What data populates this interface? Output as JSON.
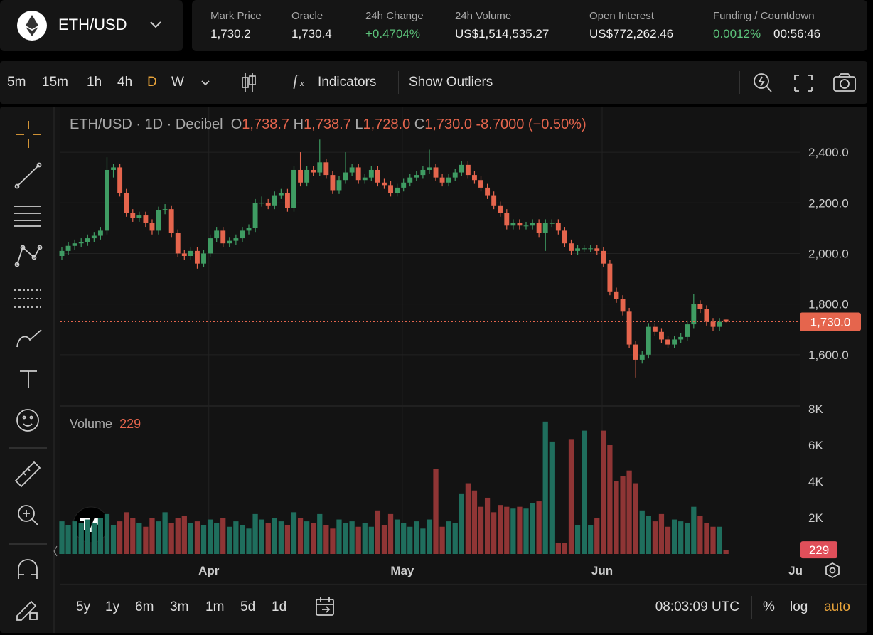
{
  "header": {
    "symbol": "ETH/USD",
    "stats": [
      {
        "label": "Mark Price",
        "value": "1,730.2"
      },
      {
        "label": "Oracle",
        "value": "1,730.4"
      },
      {
        "label": "24h Change",
        "value": "+0.4704%"
      },
      {
        "label": "24h Volume",
        "value": "US$1,514,535.27"
      },
      {
        "label": "Open Interest",
        "value": "US$772,262.46"
      },
      {
        "label": "Funding / Countdown",
        "value": "0.0012%",
        "countdown": "00:56:46"
      }
    ]
  },
  "toolbar": {
    "intervals": [
      "5m",
      "15m",
      "1h",
      "4h",
      "D",
      "W"
    ],
    "indicators": "Indicators",
    "show_outliers": "Show Outliers"
  },
  "footer": {
    "ranges": [
      "5y",
      "1y",
      "6m",
      "3m",
      "1m",
      "5d",
      "1d"
    ],
    "time": "08:03:09 UTC",
    "percent": "%",
    "log": "log",
    "auto": "auto"
  },
  "chart_data": {
    "type": "candlestick",
    "legend": {
      "title": "ETH/USD · 1D · Decibel",
      "items": [
        {
          "key": "O",
          "value": "1,738.7"
        },
        {
          "key": "H",
          "value": "1,738.7"
        },
        {
          "key": "L",
          "value": "1,728.0"
        },
        {
          "key": "C",
          "value": "1,730.0"
        }
      ],
      "change": "-8.7000 (−0.50%)"
    },
    "volume_label": "Volume",
    "up_color": "#3f9c63",
    "down_color": "#e5654d",
    "volume_up_color": "#1f6e5d",
    "volume_down_color": "#8f3535",
    "grid": true,
    "xlim": [
      -0.22,
      114.45
    ],
    "xticks": [
      {
        "value": 22.8,
        "label": "Apr"
      },
      {
        "value": 52.8,
        "label": "May"
      },
      {
        "value": 83.8,
        "label": "Jun"
      },
      {
        "value": 113.8,
        "label": "Ju"
      }
    ],
    "ylim": [
      1400,
      2580
    ],
    "yticks": [
      {
        "value": 1600,
        "label": "1,600.0"
      },
      {
        "value": 1800,
        "label": "1,800.0"
      },
      {
        "value": 2000,
        "label": "2,000.0"
      },
      {
        "value": 2200,
        "label": "2,200.0"
      },
      {
        "value": 2400,
        "label": "2,400.0"
      }
    ],
    "volume_ylim": [
      0,
      8000
    ],
    "volume_yticks": [
      {
        "value": 2000,
        "label": "2K"
      },
      {
        "value": 4000,
        "label": "4K"
      },
      {
        "value": 6000,
        "label": "6K"
      },
      {
        "value": 8000,
        "label": "8K"
      }
    ],
    "last_price": 1730,
    "last_price_label": "1,730.0",
    "ohlc": [
      [
        1990,
        2025,
        1975,
        2010
      ],
      [
        2010,
        2045,
        1995,
        2030
      ],
      [
        2030,
        2055,
        2015,
        2040
      ],
      [
        2040,
        2060,
        2025,
        2045
      ],
      [
        2045,
        2075,
        2030,
        2060
      ],
      [
        2060,
        2085,
        2045,
        2070
      ],
      [
        2070,
        2105,
        2055,
        2090
      ],
      [
        2090,
        2380,
        2075,
        2330
      ],
      [
        2330,
        2355,
        2300,
        2340
      ],
      [
        2340,
        2355,
        2225,
        2240
      ],
      [
        2240,
        2255,
        2145,
        2160
      ],
      [
        2160,
        2175,
        2125,
        2140
      ],
      [
        2140,
        2165,
        2125,
        2150
      ],
      [
        2150,
        2165,
        2105,
        2120
      ],
      [
        2120,
        2135,
        2075,
        2090
      ],
      [
        2090,
        2185,
        2075,
        2170
      ],
      [
        2170,
        2195,
        2155,
        2175
      ],
      [
        2175,
        2190,
        2065,
        2080
      ],
      [
        2080,
        2095,
        1985,
        2000
      ],
      [
        2000,
        2015,
        1975,
        1990
      ],
      [
        1990,
        2025,
        1975,
        2010
      ],
      [
        2010,
        2025,
        1940,
        1960
      ],
      [
        1960,
        2015,
        1945,
        2000
      ],
      [
        2000,
        2075,
        1985,
        2060
      ],
      [
        2060,
        2105,
        2045,
        2090
      ],
      [
        2090,
        2105,
        2025,
        2040
      ],
      [
        2040,
        2065,
        2025,
        2050
      ],
      [
        2050,
        2075,
        2035,
        2060
      ],
      [
        2060,
        2105,
        2045,
        2090
      ],
      [
        2090,
        2115,
        2075,
        2100
      ],
      [
        2100,
        2215,
        2085,
        2200
      ],
      [
        2200,
        2225,
        2185,
        2200
      ],
      [
        2200,
        2215,
        2175,
        2190
      ],
      [
        2190,
        2245,
        2175,
        2230
      ],
      [
        2230,
        2255,
        2215,
        2240
      ],
      [
        2240,
        2255,
        2165,
        2180
      ],
      [
        2180,
        2345,
        2165,
        2330
      ],
      [
        2330,
        2400,
        2265,
        2280
      ],
      [
        2280,
        2345,
        2265,
        2330
      ],
      [
        2330,
        2345,
        2305,
        2320
      ],
      [
        2320,
        2450,
        2305,
        2360
      ],
      [
        2360,
        2375,
        2295,
        2310
      ],
      [
        2310,
        2325,
        2235,
        2250
      ],
      [
        2250,
        2305,
        2235,
        2290
      ],
      [
        2290,
        2400,
        2275,
        2320
      ],
      [
        2320,
        2355,
        2305,
        2340
      ],
      [
        2340,
        2355,
        2275,
        2290
      ],
      [
        2290,
        2315,
        2275,
        2300
      ],
      [
        2300,
        2345,
        2285,
        2330
      ],
      [
        2330,
        2345,
        2265,
        2280
      ],
      [
        2280,
        2295,
        2255,
        2270
      ],
      [
        2270,
        2285,
        2225,
        2240
      ],
      [
        2240,
        2275,
        2225,
        2260
      ],
      [
        2260,
        2295,
        2245,
        2280
      ],
      [
        2280,
        2315,
        2265,
        2300
      ],
      [
        2300,
        2325,
        2285,
        2310
      ],
      [
        2310,
        2345,
        2295,
        2330
      ],
      [
        2330,
        2410,
        2315,
        2340
      ],
      [
        2340,
        2355,
        2285,
        2300
      ],
      [
        2300,
        2315,
        2265,
        2280
      ],
      [
        2280,
        2315,
        2265,
        2300
      ],
      [
        2300,
        2335,
        2285,
        2320
      ],
      [
        2320,
        2365,
        2305,
        2350
      ],
      [
        2350,
        2365,
        2295,
        2310
      ],
      [
        2310,
        2325,
        2275,
        2290
      ],
      [
        2290,
        2305,
        2245,
        2260
      ],
      [
        2260,
        2275,
        2215,
        2230
      ],
      [
        2230,
        2245,
        2175,
        2190
      ],
      [
        2190,
        2205,
        2145,
        2160
      ],
      [
        2160,
        2175,
        2095,
        2110
      ],
      [
        2110,
        2135,
        2095,
        2120
      ],
      [
        2120,
        2135,
        2095,
        2110
      ],
      [
        2110,
        2125,
        2095,
        2110
      ],
      [
        2110,
        2135,
        2095,
        2120
      ],
      [
        2120,
        2135,
        2065,
        2080
      ],
      [
        2080,
        2135,
        2010,
        2120
      ],
      [
        2120,
        2135,
        2105,
        2120
      ],
      [
        2120,
        2135,
        2075,
        2090
      ],
      [
        2090,
        2105,
        2025,
        2040
      ],
      [
        2040,
        2055,
        1995,
        2010
      ],
      [
        2010,
        2035,
        1995,
        2020
      ],
      [
        2020,
        2035,
        2005,
        2020
      ],
      [
        2020,
        2035,
        2005,
        2020
      ],
      [
        2020,
        2035,
        1995,
        2010
      ],
      [
        2010,
        2025,
        1945,
        1960
      ],
      [
        1960,
        1975,
        1835,
        1850
      ],
      [
        1850,
        1865,
        1805,
        1820
      ],
      [
        1820,
        1835,
        1755,
        1770
      ],
      [
        1770,
        1785,
        1625,
        1640
      ],
      [
        1640,
        1655,
        1510,
        1580
      ],
      [
        1580,
        1615,
        1565,
        1600
      ],
      [
        1600,
        1725,
        1585,
        1710
      ],
      [
        1710,
        1725,
        1675,
        1690
      ],
      [
        1690,
        1705,
        1645,
        1660
      ],
      [
        1660,
        1675,
        1625,
        1640
      ],
      [
        1640,
        1675,
        1625,
        1660
      ],
      [
        1660,
        1685,
        1645,
        1670
      ],
      [
        1670,
        1735,
        1655,
        1720
      ],
      [
        1720,
        1840,
        1705,
        1800
      ],
      [
        1800,
        1815,
        1765,
        1780
      ],
      [
        1780,
        1795,
        1715,
        1730
      ],
      [
        1730,
        1745,
        1695,
        1710
      ],
      [
        1710,
        1745,
        1695,
        1730
      ],
      [
        1738.7,
        1738.7,
        1728,
        1730
      ]
    ],
    "volume": [
      1800,
      1600,
      1800,
      1700,
      1900,
      1700,
      2000,
      2200,
      1600,
      1800,
      2300,
      2000,
      1700,
      1500,
      2000,
      1800,
      2300,
      1700,
      2000,
      2100,
      1700,
      1800,
      1600,
      1900,
      1700,
      2000,
      1500,
      1800,
      1600,
      1400,
      2200,
      1900,
      1700,
      2000,
      1800,
      1600,
      2300,
      2000,
      1800,
      1700,
      2200,
      1600,
      1400,
      1900,
      1700,
      1800,
      1500,
      1700,
      1500,
      2400,
      1600,
      2200,
      1900,
      1700,
      1500,
      1800,
      1400,
      1900,
      4700,
      1500,
      1800,
      1700,
      3300,
      3900,
      3500,
      2600,
      3100,
      2300,
      2700,
      2600,
      2500,
      2600,
      2500,
      2800,
      2900,
      7300,
      6200,
      600,
      600,
      6300,
      1600,
      6800,
      1600,
      2000,
      6800,
      6000,
      4000,
      4300,
      4600,
      3900,
      2400,
      2100,
      1800,
      2200,
      1500,
      1900,
      1800,
      1700,
      2600,
      2100,
      1700,
      1500,
      1500,
      229
    ]
  }
}
